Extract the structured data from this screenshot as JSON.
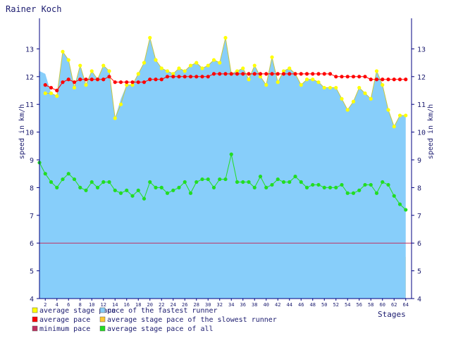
{
  "chart_data": {
    "type": "area",
    "title": "Rainer Koch",
    "xlabel": "Stages",
    "ylabel": "speed in km/h",
    "ylim": [
      4,
      14
    ],
    "xlim": [
      1,
      65
    ],
    "yticks": [
      4,
      5,
      6,
      7,
      8,
      9,
      10,
      11,
      12,
      13
    ],
    "xticks": [
      2,
      4,
      6,
      8,
      10,
      12,
      14,
      16,
      18,
      20,
      22,
      24,
      26,
      28,
      30,
      32,
      34,
      36,
      38,
      40,
      42,
      44,
      46,
      48,
      50,
      52,
      54,
      56,
      58,
      60,
      62,
      64
    ],
    "grid": false,
    "reference_line": 6,
    "colors": {
      "fastest": "#87cefa",
      "slowest": "#ffc830",
      "stage_pace": "#ffff00",
      "average_pace": "#ff0000",
      "all": "#22dd22",
      "min_line": "#c03060",
      "axis": "#000080"
    },
    "legend": [
      {
        "label": "average stage pace",
        "color": "#ffff00"
      },
      {
        "label": "pace of the fastest runner",
        "color": "#87cefa"
      },
      {
        "label": "average pace",
        "color": "#ff0000"
      },
      {
        "label": "average stage pace of the slowest runner",
        "color": "#ffc830"
      },
      {
        "label": "minimum pace",
        "color": "#c03060"
      },
      {
        "label": "average stage pace of all",
        "color": "#22dd22"
      }
    ],
    "series": [
      {
        "name": "pace of the fastest runner",
        "x": [
          1,
          2,
          3,
          4,
          5,
          6,
          7,
          8,
          9,
          10,
          11,
          12,
          13,
          14,
          15,
          16,
          17,
          18,
          19,
          20,
          21,
          22,
          23,
          24,
          25,
          26,
          27,
          28,
          29,
          30,
          31,
          32,
          33,
          34,
          35,
          36,
          37,
          38,
          39,
          40,
          41,
          42,
          43,
          44,
          45,
          46,
          47,
          48,
          49,
          50,
          51,
          52,
          53,
          54,
          55,
          56,
          57,
          58,
          59,
          60,
          61,
          62,
          63,
          64
        ],
        "values": [
          12.2,
          12.1,
          11.4,
          11.3,
          12.9,
          12.6,
          11.6,
          12.4,
          11.7,
          12.2,
          11.9,
          12.4,
          12.2,
          10.5,
          11.2,
          11.7,
          11.7,
          12.1,
          12.5,
          13.4,
          12.6,
          12.3,
          12.2,
          12.1,
          12.3,
          12.2,
          12.4,
          12.5,
          12.3,
          12.4,
          12.6,
          12.5,
          13.4,
          12.1,
          12.2,
          12.3,
          11.9,
          12.4,
          12.0,
          11.7,
          12.7,
          11.8,
          12.2,
          12.3,
          12.1,
          11.7,
          11.9,
          11.9,
          11.8,
          11.6,
          11.6,
          11.6,
          11.2,
          10.8,
          11.1,
          11.6,
          11.4,
          11.2,
          12.2,
          11.7,
          10.8,
          10.2,
          10.6,
          10.6
        ]
      },
      {
        "name": "average stage pace",
        "x": [
          2,
          3,
          4,
          5,
          6,
          7,
          8,
          9,
          10,
          11,
          12,
          13,
          14,
          15,
          16,
          17,
          18,
          19,
          20,
          21,
          22,
          23,
          24,
          25,
          26,
          27,
          28,
          29,
          30,
          31,
          32,
          33,
          34,
          35,
          36,
          37,
          38,
          39,
          40,
          41,
          42,
          43,
          44,
          45,
          46,
          47,
          48,
          49,
          50,
          51,
          52,
          53,
          54,
          55,
          56,
          57,
          58,
          59,
          60,
          61,
          62,
          63,
          64
        ],
        "values": [
          11.4,
          11.4,
          11.3,
          12.9,
          12.6,
          11.6,
          12.4,
          11.7,
          12.2,
          11.9,
          12.4,
          12.2,
          10.5,
          11.0,
          11.7,
          11.7,
          12.1,
          12.5,
          13.4,
          12.6,
          12.3,
          12.2,
          12.1,
          12.3,
          12.2,
          12.4,
          12.5,
          12.3,
          12.4,
          12.6,
          12.5,
          13.4,
          12.1,
          12.2,
          12.3,
          11.9,
          12.4,
          12.0,
          11.7,
          12.7,
          11.8,
          12.2,
          12.3,
          12.1,
          11.7,
          11.9,
          11.9,
          11.8,
          11.6,
          11.6,
          11.6,
          11.2,
          10.8,
          11.1,
          11.6,
          11.4,
          11.2,
          12.2,
          11.7,
          10.8,
          10.2,
          10.6,
          10.6
        ]
      },
      {
        "name": "average pace",
        "x": [
          2,
          3,
          4,
          5,
          6,
          7,
          8,
          9,
          10,
          11,
          12,
          13,
          14,
          15,
          16,
          17,
          18,
          19,
          20,
          21,
          22,
          23,
          24,
          25,
          26,
          27,
          28,
          29,
          30,
          31,
          32,
          33,
          34,
          35,
          36,
          37,
          38,
          39,
          40,
          41,
          42,
          43,
          44,
          45,
          46,
          47,
          48,
          49,
          50,
          51,
          52,
          53,
          54,
          55,
          56,
          57,
          58,
          59,
          60,
          61,
          62,
          63,
          64
        ],
        "values": [
          11.7,
          11.6,
          11.5,
          11.8,
          11.9,
          11.8,
          11.9,
          11.9,
          11.9,
          11.9,
          11.9,
          12.0,
          11.8,
          11.8,
          11.8,
          11.8,
          11.8,
          11.8,
          11.9,
          11.9,
          11.9,
          12.0,
          12.0,
          12.0,
          12.0,
          12.0,
          12.0,
          12.0,
          12.0,
          12.1,
          12.1,
          12.1,
          12.1,
          12.1,
          12.1,
          12.1,
          12.1,
          12.1,
          12.1,
          12.1,
          12.1,
          12.1,
          12.1,
          12.1,
          12.1,
          12.1,
          12.1,
          12.1,
          12.1,
          12.1,
          12.0,
          12.0,
          12.0,
          12.0,
          12.0,
          12.0,
          11.9,
          11.9,
          11.9,
          11.9,
          11.9,
          11.9,
          11.9
        ]
      },
      {
        "name": "average stage pace of the slowest runner",
        "x": [
          1,
          2,
          3,
          4,
          5,
          6,
          7,
          8,
          9,
          10,
          11,
          12,
          13,
          14,
          15,
          16,
          17,
          18,
          19,
          20,
          21,
          22,
          23,
          24,
          25,
          26,
          27,
          28,
          29,
          30,
          31,
          32,
          33,
          34,
          35,
          36,
          37,
          38,
          39,
          40,
          41,
          42,
          43,
          44,
          45,
          46,
          47,
          48,
          49,
          50,
          51,
          52,
          53,
          54,
          55,
          56,
          57,
          58,
          59,
          60,
          61,
          62,
          63,
          64
        ],
        "values": [
          7.0,
          6.6,
          6.5,
          6.4,
          6.5,
          6.7,
          6.2,
          5.9,
          6.3,
          6.1,
          6.0,
          6.1,
          6.1,
          5.8,
          5.5,
          6.1,
          5.9,
          6.2,
          5.3,
          5.7,
          6.0,
          5.9,
          5.8,
          6.1,
          6.1,
          6.2,
          6.0,
          6.1,
          6.2,
          6.1,
          5.5,
          6.2,
          6.3,
          6.6,
          6.0,
          5.5,
          5.7,
          5.9,
          6.2,
          6.1,
          6.0,
          6.1,
          6.1,
          5.7,
          6.2,
          6.2,
          6.1,
          5.9,
          6.2,
          6.1,
          6.1,
          6.0,
          6.0,
          6.0,
          6.0,
          6.1,
          6.1,
          6.1,
          6.0,
          6.1,
          5.9,
          5.5,
          5.5,
          5.5
        ]
      },
      {
        "name": "average stage pace of all",
        "x": [
          1,
          2,
          3,
          4,
          5,
          6,
          7,
          8,
          9,
          10,
          11,
          12,
          13,
          14,
          15,
          16,
          17,
          18,
          19,
          20,
          21,
          22,
          23,
          24,
          25,
          26,
          27,
          28,
          29,
          30,
          31,
          32,
          33,
          34,
          35,
          36,
          37,
          38,
          39,
          40,
          41,
          42,
          43,
          44,
          45,
          46,
          47,
          48,
          49,
          50,
          51,
          52,
          53,
          54,
          55,
          56,
          57,
          58,
          59,
          60,
          61,
          62,
          63,
          64
        ],
        "values": [
          8.9,
          8.5,
          8.2,
          8.0,
          8.3,
          8.5,
          8.3,
          8.0,
          7.9,
          8.2,
          8.0,
          8.2,
          8.2,
          7.9,
          7.8,
          7.9,
          7.7,
          7.9,
          7.6,
          8.2,
          8.0,
          8.0,
          7.8,
          7.9,
          8.0,
          8.2,
          7.8,
          8.2,
          8.3,
          8.3,
          8.0,
          8.3,
          8.3,
          9.2,
          8.2,
          8.2,
          8.2,
          8.0,
          8.4,
          8.0,
          8.1,
          8.3,
          8.2,
          8.2,
          8.4,
          8.2,
          8.0,
          8.1,
          8.1,
          8.0,
          8.0,
          8.0,
          8.1,
          7.8,
          7.8,
          7.9,
          8.1,
          8.1,
          7.8,
          8.2,
          8.1,
          7.7,
          7.4,
          7.2
        ]
      }
    ]
  }
}
